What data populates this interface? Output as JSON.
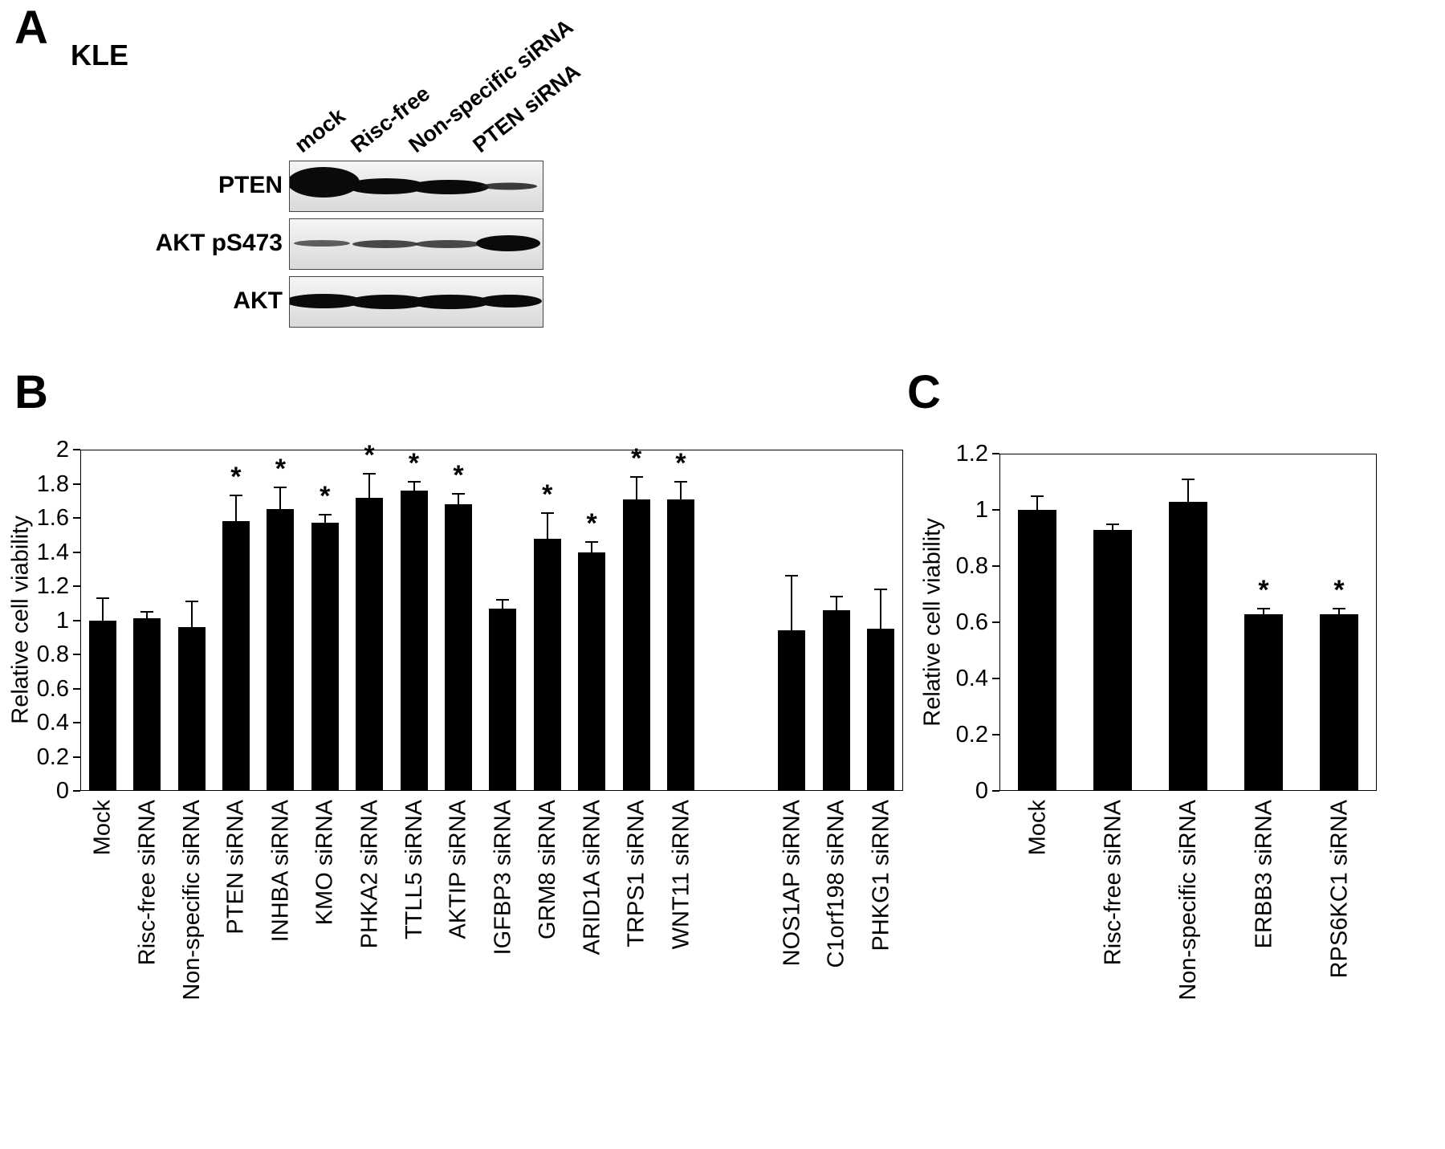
{
  "panel_a": {
    "label": "A",
    "cell_line": "KLE",
    "lane_labels": [
      "mock",
      "Risc-free",
      "Non-specific siRNA",
      "PTEN siRNA"
    ],
    "blot_labels": [
      "PTEN",
      "AKT pS473",
      "AKT"
    ]
  },
  "panel_b": {
    "label": "B"
  },
  "panel_c": {
    "label": "C"
  },
  "chart_data": [
    {
      "id": "panel-b",
      "type": "bar",
      "title": "",
      "ylabel": "Relative cell viability",
      "ylim": [
        0,
        2
      ],
      "yticks": [
        "0",
        "0.2",
        "0.4",
        "0.6",
        "0.8",
        "1",
        "1.2",
        "1.4",
        "1.6",
        "1.8",
        "2"
      ],
      "bar_color": "#000000",
      "grid": false,
      "legend": "none",
      "categories": [
        "Mock",
        "Risc-free siRNA",
        "Non-specific siRNA",
        "PTEN siRNA",
        "INHBA siRNA",
        "KMO siRNA",
        "PHKA2 siRNA",
        "TTLL5 siRNA",
        "AKTIP siRNA",
        "IGFBP3 siRNA",
        "GRM8 siRNA",
        "ARID1A siRNA",
        "TRPS1 siRNA",
        "WNT11 siRNA",
        "NOS1AP siRNA",
        "C1orf198 siRNA",
        "PHKG1 siRNA"
      ],
      "values": [
        1.0,
        1.01,
        0.96,
        1.58,
        1.65,
        1.57,
        1.72,
        1.76,
        1.68,
        1.07,
        1.48,
        1.4,
        1.71,
        1.71,
        0.94,
        1.06,
        0.95
      ],
      "errors": [
        0.13,
        0.04,
        0.15,
        0.15,
        0.13,
        0.05,
        0.14,
        0.05,
        0.06,
        0.05,
        0.15,
        0.06,
        0.13,
        0.1,
        0.32,
        0.08,
        0.23
      ],
      "significant": [
        false,
        false,
        false,
        true,
        true,
        true,
        true,
        true,
        true,
        false,
        true,
        true,
        true,
        true,
        false,
        false,
        false
      ],
      "significance_marker": "*",
      "gap_after_index": 13,
      "gap_slots": 1.5
    },
    {
      "id": "panel-c",
      "type": "bar",
      "title": "",
      "ylabel": "Relative cell viability",
      "ylim": [
        0,
        1.2
      ],
      "yticks": [
        "0",
        "0.2",
        "0.4",
        "0.6",
        "0.8",
        "1",
        "1.2"
      ],
      "bar_color": "#000000",
      "grid": false,
      "legend": "none",
      "categories": [
        "Mock",
        "Risc-free siRNA",
        "Non-specific siRNA",
        "ERBB3 siRNA",
        "RPS6KC1 siRNA"
      ],
      "values": [
        1.0,
        0.93,
        1.03,
        0.63,
        0.63
      ],
      "errors": [
        0.05,
        0.02,
        0.08,
        0.02,
        0.02
      ],
      "significant": [
        false,
        false,
        false,
        true,
        true
      ],
      "significance_marker": "*",
      "gap_after_index": -1,
      "gap_slots": 0
    }
  ]
}
